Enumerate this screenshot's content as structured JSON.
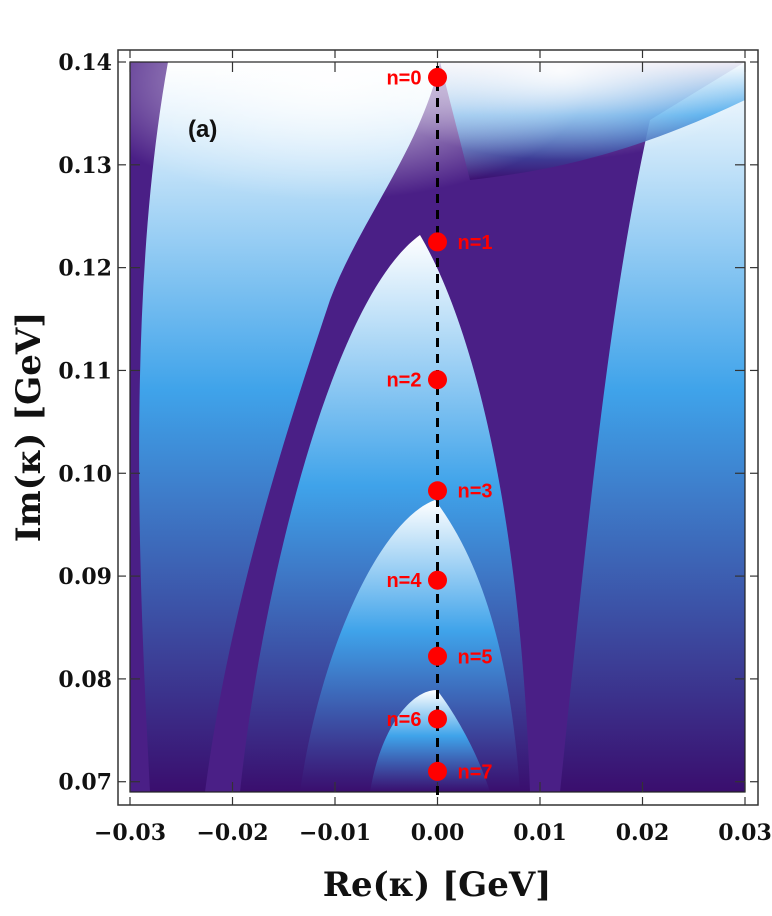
{
  "chart_data": {
    "type": "heatmap",
    "panel_label": "(a)",
    "xlabel": "Re(κ) [GeV]",
    "ylabel": "Im(κ) [GeV]",
    "xlim": [
      -0.03,
      0.03
    ],
    "ylim": [
      0.069,
      0.14
    ],
    "x_ticks": [
      -0.03,
      -0.02,
      -0.01,
      0.0,
      0.01,
      0.02,
      0.03
    ],
    "x_tick_labels": [
      "−0.03",
      "−0.02",
      "−0.01",
      "0.00",
      "0.01",
      "0.02",
      "0.03"
    ],
    "y_ticks": [
      0.07,
      0.08,
      0.09,
      0.1,
      0.11,
      0.12,
      0.13,
      0.14
    ],
    "y_tick_labels": [
      "0.07",
      "0.08",
      "0.09",
      "0.10",
      "0.11",
      "0.12",
      "0.13",
      "0.14"
    ],
    "colormap": [
      "#ffffff",
      "#3fa3ea",
      "#3a0e6e"
    ],
    "marker_color": "#ff0000",
    "reference_line": {
      "x": 0.0,
      "style": "dashed",
      "color": "#000000"
    },
    "points": [
      {
        "label": "n=0",
        "x": 0.0,
        "y": 0.1385,
        "label_side": "left"
      },
      {
        "label": "n=1",
        "x": 0.0,
        "y": 0.1225,
        "label_side": "right"
      },
      {
        "label": "n=2",
        "x": 0.0,
        "y": 0.1091,
        "label_side": "left"
      },
      {
        "label": "n=3",
        "x": 0.0,
        "y": 0.0983,
        "label_side": "right"
      },
      {
        "label": "n=4",
        "x": 0.0,
        "y": 0.0896,
        "label_side": "left"
      },
      {
        "label": "n=5",
        "x": 0.0,
        "y": 0.0822,
        "label_side": "right"
      },
      {
        "label": "n=6",
        "x": 0.0,
        "y": 0.0761,
        "label_side": "left"
      },
      {
        "label": "n=7",
        "x": 0.0,
        "y": 0.071,
        "label_side": "right"
      }
    ]
  }
}
